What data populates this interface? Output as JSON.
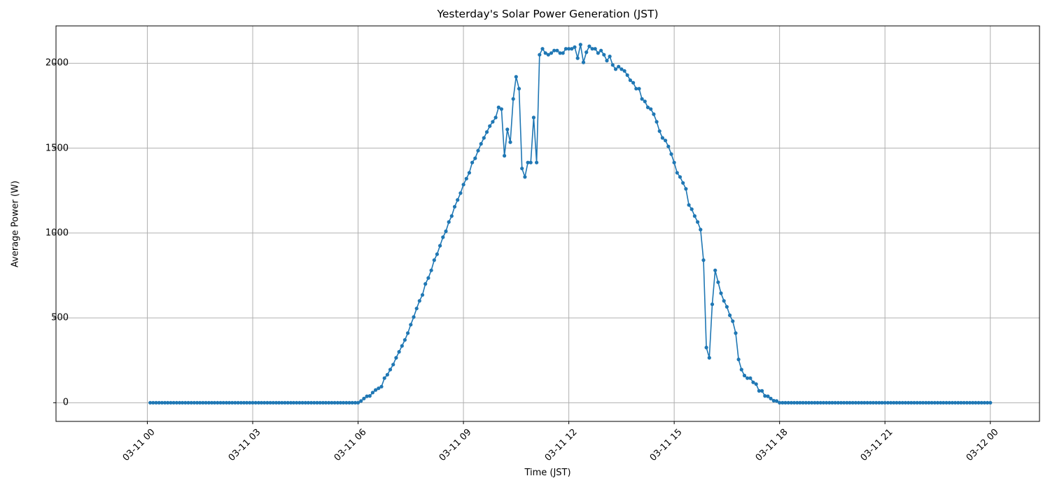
{
  "chart_data": {
    "type": "line",
    "title": "Yesterday's Solar Power Generation (JST)",
    "xlabel": "Time (JST)",
    "ylabel": "Average Power (W)",
    "x_tick_labels": [
      "03-11 00",
      "03-11 03",
      "03-11 06",
      "03-11 09",
      "03-11 12",
      "03-11 15",
      "03-11 18",
      "03-11 21",
      "03-12 00"
    ],
    "y_tick_labels": [
      "0",
      "500",
      "1000",
      "1500",
      "2000"
    ],
    "y_ticks": [
      0,
      500,
      1000,
      1500,
      2000
    ],
    "ylim": [
      -110,
      2220
    ],
    "xlim_hours": [
      -2.6,
      25.4
    ],
    "grid": true,
    "legend": null,
    "marker": "circle",
    "line_color": "#1f77b4",
    "interval_minutes": 5,
    "start_time": "03-11 00:05",
    "end_time": "03-12 00:00",
    "series": [
      {
        "name": "Average Power (W)",
        "start_minutes": 5,
        "step_minutes": 5,
        "values": [
          0,
          0,
          0,
          0,
          0,
          0,
          0,
          0,
          0,
          0,
          0,
          0,
          0,
          0,
          0,
          0,
          0,
          0,
          0,
          0,
          0,
          0,
          0,
          0,
          0,
          0,
          0,
          0,
          0,
          0,
          0,
          0,
          0,
          0,
          0,
          0,
          0,
          0,
          0,
          0,
          0,
          0,
          0,
          0,
          0,
          0,
          0,
          0,
          0,
          0,
          0,
          0,
          0,
          0,
          0,
          0,
          0,
          0,
          0,
          0,
          0,
          0,
          0,
          0,
          0,
          0,
          0,
          0,
          0,
          0,
          0,
          0,
          10,
          25,
          38,
          40,
          60,
          75,
          85,
          95,
          145,
          165,
          195,
          225,
          265,
          300,
          335,
          370,
          410,
          460,
          505,
          555,
          600,
          635,
          700,
          735,
          780,
          840,
          875,
          925,
          975,
          1010,
          1065,
          1100,
          1155,
          1195,
          1235,
          1285,
          1320,
          1355,
          1415,
          1440,
          1485,
          1525,
          1560,
          1595,
          1630,
          1655,
          1680,
          1740,
          1730,
          1455,
          1610,
          1535,
          1790,
          1920,
          1850,
          1380,
          1330,
          1415,
          1415,
          1680,
          1415,
          2050,
          2085,
          2060,
          2050,
          2060,
          2075,
          2075,
          2060,
          2060,
          2085,
          2085,
          2085,
          2095,
          2030,
          2110,
          2005,
          2065,
          2100,
          2085,
          2085,
          2060,
          2075,
          2050,
          2015,
          2040,
          1990,
          1965,
          1980,
          1965,
          1955,
          1930,
          1900,
          1885,
          1850,
          1850,
          1790,
          1775,
          1740,
          1730,
          1700,
          1655,
          1600,
          1560,
          1545,
          1510,
          1465,
          1415,
          1355,
          1330,
          1295,
          1260,
          1165,
          1140,
          1100,
          1065,
          1020,
          840,
          325,
          265,
          580,
          780,
          710,
          645,
          600,
          565,
          515,
          480,
          410,
          255,
          195,
          160,
          145,
          145,
          120,
          110,
          70,
          70,
          40,
          38,
          25,
          12,
          10,
          0,
          0,
          0,
          0,
          0,
          0,
          0,
          0,
          0,
          0,
          0,
          0,
          0,
          0,
          0,
          0,
          0,
          0,
          0,
          0,
          0,
          0,
          0,
          0,
          0,
          0,
          0,
          0,
          0,
          0,
          0,
          0,
          0,
          0,
          0,
          0,
          0,
          0,
          0,
          0,
          0,
          0,
          0,
          0,
          0,
          0,
          0,
          0,
          0,
          0,
          0,
          0,
          0,
          0,
          0,
          0,
          0,
          0,
          0,
          0,
          0,
          0,
          0,
          0,
          0,
          0,
          0,
          0,
          0,
          0,
          0,
          0,
          0
        ]
      }
    ]
  },
  "colors": {
    "line": "#1f77b4",
    "grid": "#b0b0b0",
    "axes": "#000000",
    "background": "#ffffff"
  }
}
